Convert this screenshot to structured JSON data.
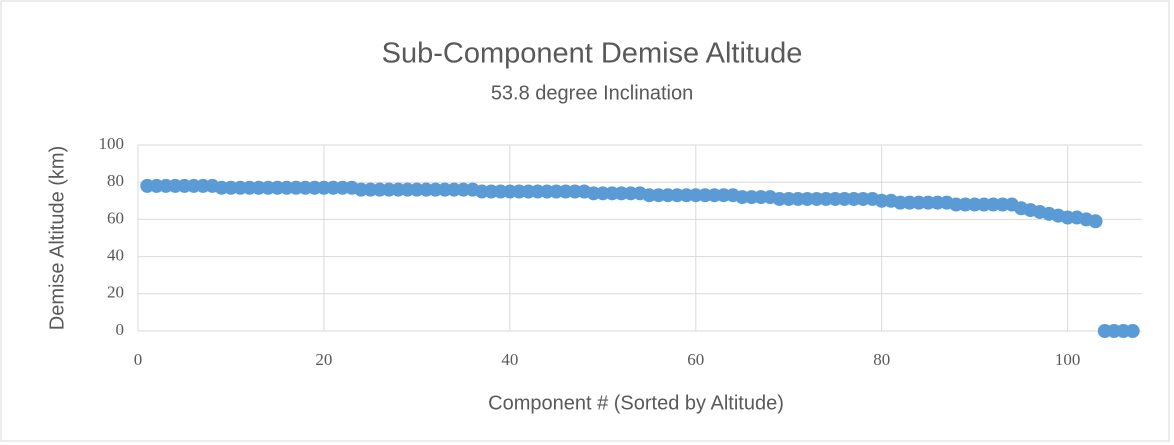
{
  "chart_data": {
    "type": "scatter",
    "title": "Sub-Component  Demise Altitude",
    "subtitle": "53.8 degree Inclination",
    "xlabel": "Component # (Sorted by Altitude)",
    "ylabel": "Demise Altitude (km)",
    "color": "#5b9bd5",
    "grid": true,
    "xlim": [
      0,
      108
    ],
    "xticks": [
      0,
      20,
      40,
      60,
      80,
      100
    ],
    "ylim": [
      0,
      100
    ],
    "yticks": [
      0,
      20,
      40,
      60,
      80,
      100
    ],
    "x": [
      1,
      2,
      3,
      4,
      5,
      6,
      7,
      8,
      9,
      10,
      11,
      12,
      13,
      14,
      15,
      16,
      17,
      18,
      19,
      20,
      21,
      22,
      23,
      24,
      25,
      26,
      27,
      28,
      29,
      30,
      31,
      32,
      33,
      34,
      35,
      36,
      37,
      38,
      39,
      40,
      41,
      42,
      43,
      44,
      45,
      46,
      47,
      48,
      49,
      50,
      51,
      52,
      53,
      54,
      55,
      56,
      57,
      58,
      59,
      60,
      61,
      62,
      63,
      64,
      65,
      66,
      67,
      68,
      69,
      70,
      71,
      72,
      73,
      74,
      75,
      76,
      77,
      78,
      79,
      80,
      81,
      82,
      83,
      84,
      85,
      86,
      87,
      88,
      89,
      90,
      91,
      92,
      93,
      94,
      95,
      96,
      97,
      98,
      99,
      100,
      101,
      102,
      103,
      104,
      105,
      106,
      107
    ],
    "values": [
      78,
      78,
      78,
      78,
      78,
      78,
      78,
      78,
      77,
      77,
      77,
      77,
      77,
      77,
      77,
      77,
      77,
      77,
      77,
      77,
      77,
      77,
      77,
      76,
      76,
      76,
      76,
      76,
      76,
      76,
      76,
      76,
      76,
      76,
      76,
      76,
      75,
      75,
      75,
      75,
      75,
      75,
      75,
      75,
      75,
      75,
      75,
      75,
      74,
      74,
      74,
      74,
      74,
      74,
      73,
      73,
      73,
      73,
      73,
      73,
      73,
      73,
      73,
      73,
      72,
      72,
      72,
      72,
      71,
      71,
      71,
      71,
      71,
      71,
      71,
      71,
      71,
      71,
      71,
      70,
      70,
      69,
      69,
      69,
      69,
      69,
      69,
      68,
      68,
      68,
      68,
      68,
      68,
      68,
      66,
      65,
      64,
      63,
      62,
      61,
      61,
      60,
      59,
      0,
      0,
      0,
      0
    ]
  }
}
